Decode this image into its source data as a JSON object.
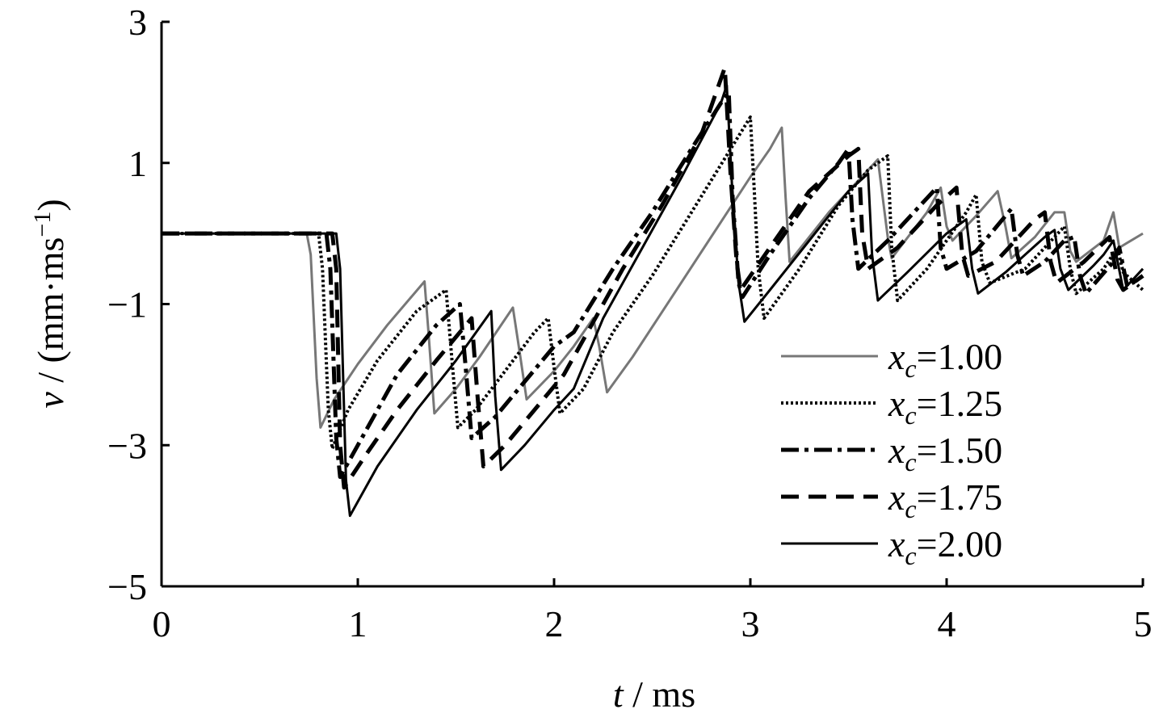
{
  "chart_data": {
    "type": "line",
    "xlabel_var": "t",
    "xlabel_unit": " / ms",
    "ylabel_var": "v",
    "ylabel_unit": " / (mm·ms",
    "ylabel_exp": "−1",
    "ylabel_close": ")",
    "xlim": [
      0,
      5
    ],
    "ylim": [
      -5,
      3
    ],
    "xticks": [
      0,
      1,
      2,
      3,
      4,
      5
    ],
    "xtick_labels": [
      "0",
      "1",
      "2",
      "3",
      "4",
      "5"
    ],
    "yticks": [
      -5,
      -3,
      -1,
      1,
      3
    ],
    "ytick_labels": [
      "−5",
      "−3",
      "−1",
      "1",
      "3"
    ],
    "grid": false,
    "legend_position": "lower-right",
    "series": [
      {
        "name": "xc=1.00",
        "label_var": "x",
        "label_sub": "c",
        "label_val": "=1.00",
        "color": "#777777",
        "dash": "solid",
        "width": 3,
        "points": [
          [
            0,
            0
          ],
          [
            0.74,
            0
          ],
          [
            0.76,
            -0.3
          ],
          [
            0.79,
            -2.05
          ],
          [
            0.81,
            -2.75
          ],
          [
            0.88,
            -2.35
          ],
          [
            1.0,
            -1.85
          ],
          [
            1.15,
            -1.3
          ],
          [
            1.34,
            -0.68
          ],
          [
            1.36,
            -1.4
          ],
          [
            1.39,
            -2.55
          ],
          [
            1.5,
            -2.2
          ],
          [
            1.62,
            -1.75
          ],
          [
            1.79,
            -1.05
          ],
          [
            1.82,
            -1.6
          ],
          [
            1.86,
            -2.35
          ],
          [
            2.0,
            -1.95
          ],
          [
            2.1,
            -1.6
          ],
          [
            2.2,
            -1.2
          ],
          [
            2.23,
            -1.6
          ],
          [
            2.27,
            -2.25
          ],
          [
            2.4,
            -1.75
          ],
          [
            2.6,
            -0.9
          ],
          [
            2.8,
            -0.05
          ],
          [
            3.0,
            0.8
          ],
          [
            3.1,
            1.2
          ],
          [
            3.16,
            1.5
          ],
          [
            3.18,
            0.5
          ],
          [
            3.2,
            -0.4
          ],
          [
            3.4,
            0.3
          ],
          [
            3.6,
            0.9
          ],
          [
            3.65,
            1.05
          ],
          [
            3.7,
            -0.05
          ],
          [
            3.72,
            -0.35
          ],
          [
            3.9,
            0.3
          ],
          [
            3.97,
            0.65
          ],
          [
            4.0,
            0.1
          ],
          [
            4.03,
            -0.1
          ],
          [
            4.15,
            0.25
          ],
          [
            4.26,
            0.6
          ],
          [
            4.3,
            0.1
          ],
          [
            4.33,
            -0.35
          ],
          [
            4.45,
            -0.05
          ],
          [
            4.55,
            0.3
          ],
          [
            4.6,
            0.3
          ],
          [
            4.63,
            -0.25
          ],
          [
            4.66,
            -0.4
          ],
          [
            4.8,
            -0.1
          ],
          [
            4.85,
            0.3
          ],
          [
            4.88,
            -0.2
          ],
          [
            5.0,
            0.0
          ]
        ]
      },
      {
        "name": "xc=1.25",
        "label_var": "x",
        "label_sub": "c",
        "label_val": "=1.25",
        "color": "#000000",
        "dash": "3,3",
        "width": 4,
        "points": [
          [
            0,
            0
          ],
          [
            0.8,
            0
          ],
          [
            0.82,
            -0.5
          ],
          [
            0.85,
            -2.5
          ],
          [
            0.87,
            -3.05
          ],
          [
            0.95,
            -2.5
          ],
          [
            1.1,
            -1.8
          ],
          [
            1.3,
            -1.1
          ],
          [
            1.45,
            -0.8
          ],
          [
            1.48,
            -1.8
          ],
          [
            1.51,
            -2.75
          ],
          [
            1.6,
            -2.5
          ],
          [
            1.75,
            -1.95
          ],
          [
            1.9,
            -1.4
          ],
          [
            1.97,
            -1.2
          ],
          [
            2.0,
            -1.9
          ],
          [
            2.03,
            -2.55
          ],
          [
            2.15,
            -2.2
          ],
          [
            2.3,
            -1.4
          ],
          [
            2.5,
            -0.6
          ],
          [
            2.7,
            0.3
          ],
          [
            2.9,
            1.2
          ],
          [
            3.0,
            1.65
          ],
          [
            3.02,
            0.6
          ],
          [
            3.04,
            -0.5
          ],
          [
            3.07,
            -1.2
          ],
          [
            3.25,
            -0.5
          ],
          [
            3.45,
            0.4
          ],
          [
            3.6,
            0.9
          ],
          [
            3.7,
            1.1
          ],
          [
            3.72,
            -0.2
          ],
          [
            3.75,
            -0.95
          ],
          [
            3.9,
            -0.5
          ],
          [
            4.1,
            0.3
          ],
          [
            4.15,
            0.55
          ],
          [
            4.18,
            -0.4
          ],
          [
            4.22,
            -0.7
          ],
          [
            4.4,
            -0.5
          ],
          [
            4.55,
            -0.05
          ],
          [
            4.6,
            0.1
          ],
          [
            4.63,
            -0.5
          ],
          [
            4.66,
            -0.85
          ],
          [
            4.8,
            -0.5
          ],
          [
            4.87,
            -0.2
          ],
          [
            4.9,
            -0.55
          ],
          [
            5.0,
            -0.8
          ]
        ]
      },
      {
        "name": "xc=1.50",
        "label_var": "x",
        "label_sub": "c",
        "label_val": "=1.50",
        "color": "#000000",
        "dash": "22,7,5,7",
        "width": 5,
        "points": [
          [
            0,
            0
          ],
          [
            0.84,
            0
          ],
          [
            0.86,
            -0.5
          ],
          [
            0.89,
            -2.9
          ],
          [
            0.91,
            -3.45
          ],
          [
            1.0,
            -3.0
          ],
          [
            1.2,
            -2.0
          ],
          [
            1.4,
            -1.3
          ],
          [
            1.52,
            -1.0
          ],
          [
            1.55,
            -1.9
          ],
          [
            1.58,
            -2.9
          ],
          [
            1.7,
            -2.6
          ],
          [
            1.85,
            -2.1
          ],
          [
            2.0,
            -1.6
          ],
          [
            2.1,
            -1.4
          ],
          [
            2.3,
            -0.5
          ],
          [
            2.5,
            0.3
          ],
          [
            2.7,
            1.2
          ],
          [
            2.85,
            1.85
          ],
          [
            2.89,
            2.0
          ],
          [
            2.91,
            0.5
          ],
          [
            2.94,
            -0.7
          ],
          [
            2.96,
            -0.9
          ],
          [
            3.1,
            -0.3
          ],
          [
            3.3,
            0.5
          ],
          [
            3.45,
            1.0
          ],
          [
            3.5,
            1.2
          ],
          [
            3.52,
            0.2
          ],
          [
            3.55,
            -0.5
          ],
          [
            3.7,
            -0.1
          ],
          [
            3.9,
            0.5
          ],
          [
            3.95,
            0.65
          ],
          [
            3.97,
            -0.2
          ],
          [
            4.0,
            -0.5
          ],
          [
            4.15,
            -0.25
          ],
          [
            4.3,
            0.25
          ],
          [
            4.33,
            0.35
          ],
          [
            4.36,
            -0.3
          ],
          [
            4.39,
            -0.6
          ],
          [
            4.5,
            -0.4
          ],
          [
            4.6,
            -0.1
          ],
          [
            4.65,
            -0.05
          ],
          [
            4.68,
            -0.6
          ],
          [
            4.71,
            -0.85
          ],
          [
            4.85,
            -0.4
          ],
          [
            4.88,
            -0.2
          ],
          [
            4.92,
            -0.75
          ],
          [
            5.0,
            -0.6
          ]
        ]
      },
      {
        "name": "xc=1.75",
        "label_var": "x",
        "label_sub": "c",
        "label_val": "=1.75",
        "color": "#000000",
        "dash": "22,12",
        "width": 5,
        "points": [
          [
            0,
            0
          ],
          [
            0.87,
            0
          ],
          [
            0.89,
            -0.5
          ],
          [
            0.91,
            -3.0
          ],
          [
            0.93,
            -3.6
          ],
          [
            1.05,
            -3.1
          ],
          [
            1.2,
            -2.5
          ],
          [
            1.4,
            -1.8
          ],
          [
            1.58,
            -1.2
          ],
          [
            1.61,
            -2.3
          ],
          [
            1.64,
            -3.3
          ],
          [
            1.75,
            -3.0
          ],
          [
            1.9,
            -2.5
          ],
          [
            2.05,
            -2.0
          ],
          [
            2.15,
            -1.5
          ],
          [
            2.35,
            -0.5
          ],
          [
            2.55,
            0.4
          ],
          [
            2.75,
            1.4
          ],
          [
            2.87,
            2.35
          ],
          [
            2.9,
            0.8
          ],
          [
            2.93,
            -0.4
          ],
          [
            2.95,
            -0.8
          ],
          [
            3.1,
            -0.2
          ],
          [
            3.3,
            0.6
          ],
          [
            3.5,
            1.1
          ],
          [
            3.55,
            1.2
          ],
          [
            3.57,
            0.0
          ],
          [
            3.6,
            -0.5
          ],
          [
            3.75,
            -0.2
          ],
          [
            3.95,
            0.4
          ],
          [
            4.05,
            0.65
          ],
          [
            4.08,
            -0.3
          ],
          [
            4.11,
            -0.6
          ],
          [
            4.25,
            -0.4
          ],
          [
            4.45,
            0.2
          ],
          [
            4.5,
            0.3
          ],
          [
            4.53,
            -0.4
          ],
          [
            4.56,
            -0.7
          ],
          [
            4.7,
            -0.4
          ],
          [
            4.83,
            -0.05
          ],
          [
            4.87,
            -0.65
          ],
          [
            4.9,
            -0.8
          ],
          [
            5.0,
            -0.6
          ]
        ]
      },
      {
        "name": "xc=2.00",
        "label_var": "x",
        "label_sub": "c",
        "label_val": "=2.00",
        "color": "#000000",
        "dash": "solid",
        "width": 3,
        "points": [
          [
            0,
            0
          ],
          [
            0.89,
            0
          ],
          [
            0.91,
            -0.5
          ],
          [
            0.94,
            -3.5
          ],
          [
            0.96,
            -4.0
          ],
          [
            1.1,
            -3.3
          ],
          [
            1.3,
            -2.5
          ],
          [
            1.5,
            -1.8
          ],
          [
            1.68,
            -1.1
          ],
          [
            1.7,
            -2.3
          ],
          [
            1.73,
            -3.35
          ],
          [
            1.85,
            -3.0
          ],
          [
            2.0,
            -2.5
          ],
          [
            2.1,
            -2.2
          ],
          [
            2.25,
            -1.2
          ],
          [
            2.45,
            -0.2
          ],
          [
            2.65,
            0.8
          ],
          [
            2.85,
            1.85
          ],
          [
            2.88,
            2.1
          ],
          [
            2.91,
            0.5
          ],
          [
            2.94,
            -0.7
          ],
          [
            2.97,
            -1.25
          ],
          [
            3.1,
            -0.8
          ],
          [
            3.3,
            -0.1
          ],
          [
            3.5,
            0.6
          ],
          [
            3.6,
            0.85
          ],
          [
            3.62,
            -0.3
          ],
          [
            3.65,
            -0.95
          ],
          [
            3.8,
            -0.55
          ],
          [
            4.0,
            0.0
          ],
          [
            4.1,
            0.2
          ],
          [
            4.13,
            -0.5
          ],
          [
            4.16,
            -0.85
          ],
          [
            4.3,
            -0.55
          ],
          [
            4.5,
            -0.05
          ],
          [
            4.55,
            0.05
          ],
          [
            4.58,
            -0.5
          ],
          [
            4.62,
            -0.8
          ],
          [
            4.75,
            -0.45
          ],
          [
            4.8,
            -0.3
          ],
          [
            4.85,
            -0.1
          ],
          [
            4.9,
            -0.8
          ],
          [
            5.0,
            -0.5
          ]
        ]
      }
    ]
  }
}
